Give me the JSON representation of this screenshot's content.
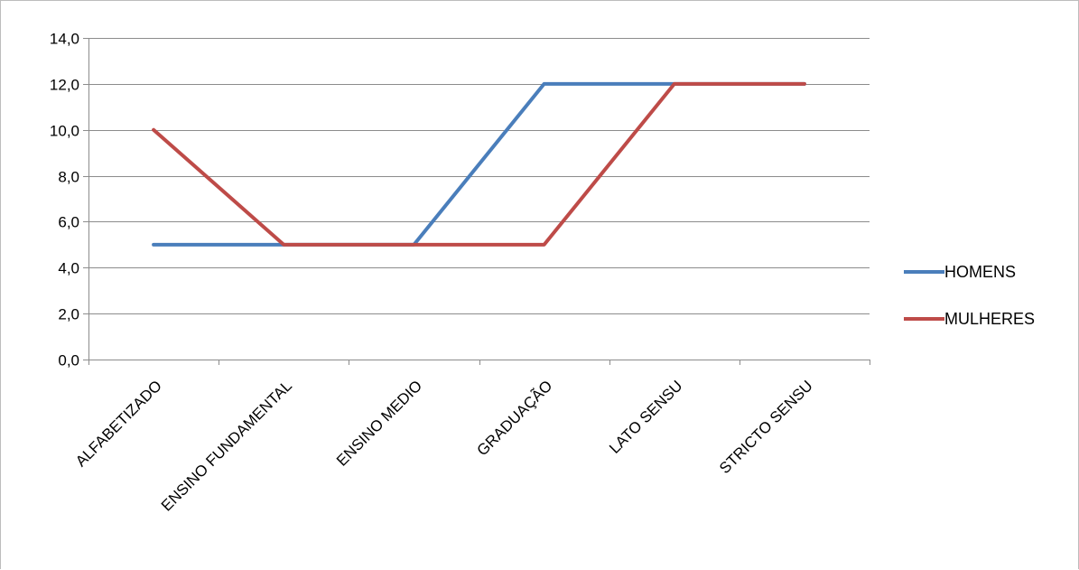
{
  "chart_data": {
    "type": "line",
    "categories": [
      "ALFABETIZADO",
      "ENSINO FUNDAMENTAL",
      "ENSINO MEDIO",
      "GRADUAÇÃO",
      "LATO SENSU",
      "STRICTO SENSU"
    ],
    "series": [
      {
        "name": "HOMENS",
        "values": [
          5,
          5,
          5,
          12,
          12,
          12
        ],
        "color": "#4a7ebb"
      },
      {
        "name": "MULHERES",
        "values": [
          10,
          5,
          5,
          5,
          12,
          12
        ],
        "color": "#be4b48"
      }
    ],
    "ylim": [
      0,
      14
    ],
    "yticks": [
      0,
      2,
      4,
      6,
      8,
      10,
      12,
      14
    ],
    "ytick_labels": [
      "0,0",
      "2,0",
      "4,0",
      "6,0",
      "8,0",
      "10,0",
      "12,0",
      "14,0"
    ],
    "grid": true,
    "legend_position": "right",
    "gridline_color": "#8c8c8c",
    "axis_color": "#8c8c8c"
  }
}
